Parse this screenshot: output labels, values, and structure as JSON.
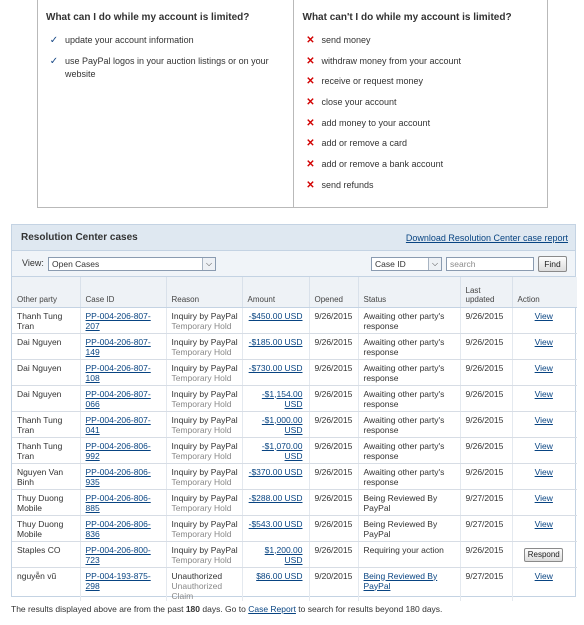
{
  "limits": {
    "can": {
      "title": "What can I do while my account is limited?",
      "items": [
        "update your account information",
        "use PayPal logos in your auction listings or on your website"
      ]
    },
    "cannot": {
      "title": "What can't I do while my account is limited?",
      "items": [
        "send money",
        "withdraw money from your account",
        "receive or request money",
        "close your account",
        "add money to your account",
        "add or remove a card",
        "add or remove a bank account",
        "send refunds"
      ]
    }
  },
  "resolution_center": {
    "title": "Resolution Center cases",
    "download_link": "Download Resolution Center case report",
    "view_label": "View:",
    "view_selected": "Open Cases",
    "field_selected": "Case ID",
    "search_placeholder": "search",
    "find_label": "Find",
    "columns": [
      "Other party",
      "Case ID",
      "Reason",
      "Amount",
      "Opened",
      "Status",
      "Last updated",
      "Action"
    ],
    "rows": [
      {
        "party": "Thanh Tung Tran",
        "case_id": "PP-004-206-807-207",
        "reason": "Inquiry by PayPal",
        "reason_sub": "Temporary Hold",
        "amount": "-$450.00 USD",
        "opened": "9/26/2015",
        "status": "Awaiting other party's response",
        "status_link": false,
        "updated": "9/26/2015",
        "action": "View",
        "action_type": "link"
      },
      {
        "party": "Dai Nguyen",
        "case_id": "PP-004-206-807-149",
        "reason": "Inquiry by PayPal",
        "reason_sub": "Temporary Hold",
        "amount": "-$185.00 USD",
        "opened": "9/26/2015",
        "status": "Awaiting other party's response",
        "status_link": false,
        "updated": "9/26/2015",
        "action": "View",
        "action_type": "link"
      },
      {
        "party": "Dai Nguyen",
        "case_id": "PP-004-206-807-108",
        "reason": "Inquiry by PayPal",
        "reason_sub": "Temporary Hold",
        "amount": "-$730.00 USD",
        "opened": "9/26/2015",
        "status": "Awaiting other party's response",
        "status_link": false,
        "updated": "9/26/2015",
        "action": "View",
        "action_type": "link"
      },
      {
        "party": "Dai Nguyen",
        "case_id": "PP-004-206-807-066",
        "reason": "Inquiry by PayPal",
        "reason_sub": "Temporary Hold",
        "amount": "-$1,154.00 USD",
        "opened": "9/26/2015",
        "status": "Awaiting other party's response",
        "status_link": false,
        "updated": "9/26/2015",
        "action": "View",
        "action_type": "link"
      },
      {
        "party": "Thanh Tung Tran",
        "case_id": "PP-004-206-807-041",
        "reason": "Inquiry by PayPal",
        "reason_sub": "Temporary Hold",
        "amount": "-$1,000.00 USD",
        "opened": "9/26/2015",
        "status": "Awaiting other party's response",
        "status_link": false,
        "updated": "9/26/2015",
        "action": "View",
        "action_type": "link"
      },
      {
        "party": "Thanh Tung Tran",
        "case_id": "PP-004-206-806-992",
        "reason": "Inquiry by PayPal",
        "reason_sub": "Temporary Hold",
        "amount": "-$1,070.00 USD",
        "opened": "9/26/2015",
        "status": "Awaiting other party's response",
        "status_link": false,
        "updated": "9/26/2015",
        "action": "View",
        "action_type": "link"
      },
      {
        "party": "Nguyen Van Binh",
        "case_id": "PP-004-206-806-935",
        "reason": "Inquiry by PayPal",
        "reason_sub": "Temporary Hold",
        "amount": "-$370.00 USD",
        "opened": "9/26/2015",
        "status": "Awaiting other party's response",
        "status_link": false,
        "updated": "9/26/2015",
        "action": "View",
        "action_type": "link"
      },
      {
        "party": "Thuy Duong Mobile",
        "case_id": "PP-004-206-806-885",
        "reason": "Inquiry by PayPal",
        "reason_sub": "Temporary Hold",
        "amount": "-$288.00 USD",
        "opened": "9/26/2015",
        "status": "Being Reviewed By PayPal",
        "status_link": false,
        "updated": "9/27/2015",
        "action": "View",
        "action_type": "link"
      },
      {
        "party": "Thuy Duong Mobile",
        "case_id": "PP-004-206-806-836",
        "reason": "Inquiry by PayPal",
        "reason_sub": "Temporary Hold",
        "amount": "-$543.00 USD",
        "opened": "9/26/2015",
        "status": "Being Reviewed By PayPal",
        "status_link": false,
        "updated": "9/27/2015",
        "action": "View",
        "action_type": "link"
      },
      {
        "party": "Staples CO",
        "case_id": "PP-004-206-800-723",
        "reason": "Inquiry by PayPal",
        "reason_sub": "Temporary Hold",
        "amount": "$1,200.00 USD",
        "opened": "9/26/2015",
        "status": "Requiring your action",
        "status_link": false,
        "updated": "9/26/2015",
        "action": "Respond",
        "action_type": "button"
      },
      {
        "party": "nguyễn vũ",
        "case_id": "PP-004-193-875-298",
        "reason": "Unauthorized",
        "reason_sub": "Unauthorized Claim",
        "amount": "$86.00 USD",
        "opened": "9/20/2015",
        "status": "Being Reviewed By PayPal",
        "status_link": true,
        "updated": "9/27/2015",
        "action": "View",
        "action_type": "link"
      }
    ]
  },
  "footnote": {
    "before": "The results displayed above are from the past ",
    "days": "180",
    "middle": " days. Go to ",
    "link": "Case Report",
    "after": " to search for results beyond 180 days."
  }
}
